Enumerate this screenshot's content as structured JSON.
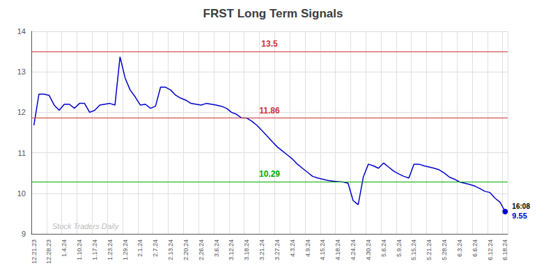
{
  "chart_data": {
    "type": "line",
    "title": "FRST Long Term Signals",
    "categories": [
      "12.21.23",
      null,
      null,
      "12.28.23",
      null,
      null,
      "1.4.24",
      null,
      null,
      "1.10.24",
      null,
      null,
      "1.17.24",
      null,
      null,
      "1.23.24",
      null,
      null,
      "1.29.24",
      null,
      null,
      "2.1.24",
      null,
      null,
      "2.7.24",
      null,
      null,
      "2.13.24",
      null,
      null,
      "2.20.24",
      null,
      null,
      "2.26.24",
      null,
      null,
      "3.6.24",
      null,
      null,
      "3.12.24",
      null,
      null,
      "3.18.24",
      null,
      null,
      "3.21.24",
      null,
      null,
      "3.27.24",
      null,
      null,
      "4.3.24",
      null,
      null,
      "4.9.24",
      null,
      null,
      "4.15.24",
      null,
      null,
      "4.18.24",
      null,
      null,
      "4.24.24",
      null,
      null,
      "4.30.24",
      null,
      null,
      "5.6.24",
      null,
      null,
      "5.9.24",
      null,
      null,
      "5.15.24",
      null,
      null,
      "5.21.24",
      null,
      null,
      "5.28.24",
      null,
      null,
      "6.3.24",
      null,
      null,
      "6.6.24",
      null,
      null,
      "6.12.24",
      null,
      null,
      "6.18.24"
    ],
    "values": [
      11.68,
      12.45,
      12.45,
      12.42,
      12.18,
      12.05,
      12.2,
      12.2,
      12.1,
      12.22,
      12.22,
      12.0,
      12.05,
      12.18,
      12.2,
      12.22,
      12.18,
      13.37,
      12.85,
      12.55,
      12.38,
      12.18,
      12.2,
      12.1,
      12.15,
      12.62,
      12.62,
      12.55,
      12.42,
      12.35,
      12.3,
      12.22,
      12.2,
      12.18,
      12.22,
      12.2,
      12.18,
      12.15,
      12.1,
      12.0,
      11.95,
      11.86,
      11.86,
      11.78,
      11.68,
      11.55,
      11.42,
      11.28,
      11.15,
      11.05,
      10.95,
      10.85,
      10.72,
      10.62,
      10.52,
      10.42,
      10.38,
      10.35,
      10.32,
      10.3,
      10.29,
      10.28,
      10.25,
      9.82,
      9.72,
      10.4,
      10.72,
      10.68,
      10.62,
      10.75,
      10.65,
      10.55,
      10.48,
      10.42,
      10.38,
      10.72,
      10.72,
      10.68,
      10.65,
      10.62,
      10.58,
      10.5,
      10.4,
      10.35,
      10.28,
      10.25,
      10.22,
      10.18,
      10.12,
      10.05,
      10.02,
      9.88,
      9.78,
      9.55
    ],
    "color": "#0000cc",
    "ylim": [
      9,
      14
    ],
    "yticks": [
      9,
      10,
      11,
      12,
      13,
      14
    ],
    "grid": true,
    "reference_lines": [
      {
        "value": 13.5,
        "label": "13.5",
        "color": "#cc3333"
      },
      {
        "value": 11.86,
        "label": "11.86",
        "color": "#cc3333"
      },
      {
        "value": 10.29,
        "label": "10.29",
        "color": "#00aa00"
      }
    ],
    "last_point": {
      "label": "16:08",
      "value_label": "9.55"
    },
    "watermark": "Stock Traders Daily"
  }
}
